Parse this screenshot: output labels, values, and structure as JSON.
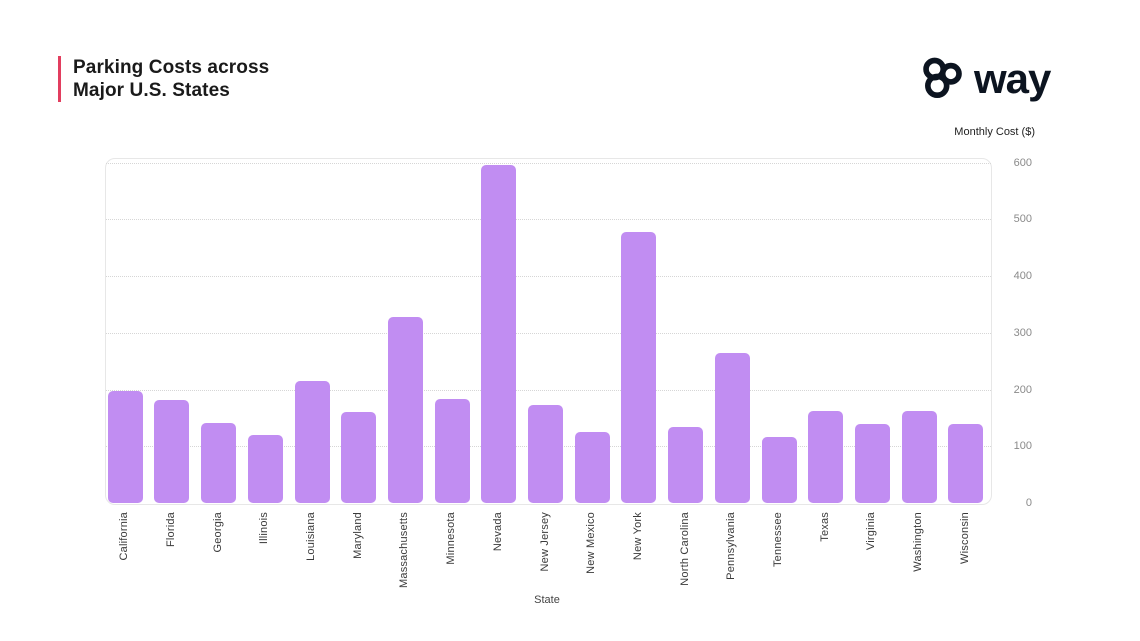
{
  "header": {
    "title_line1": "Parking Costs across",
    "title_line2": "Major U.S. States",
    "accent_color": "#e23e5f"
  },
  "logo": {
    "text": "way"
  },
  "chart_data": {
    "type": "bar",
    "title": "Parking Costs across Major U.S. States",
    "xlabel": "State",
    "ylabel": "Monthly Cost ($)",
    "ylim": [
      0,
      608
    ],
    "yticks": [
      0,
      100,
      200,
      300,
      400,
      500,
      600
    ],
    "grid": "horizontal-dotted",
    "legend_position": "none",
    "bar_color": "#c18df2",
    "categories": [
      "California",
      "Florida",
      "Georgia",
      "Illinois",
      "Louisiana",
      "Maryland",
      "Massachusetts",
      "Minnesota",
      "Nevada",
      "New Jersey",
      "New Mexico",
      "New York",
      "North Carolina",
      "Pennsylvania",
      "Tennessee",
      "Texas",
      "Virginia",
      "Washington",
      "Wisconsin"
    ],
    "values": [
      198,
      181,
      141,
      120,
      215,
      160,
      328,
      183,
      595,
      172,
      125,
      477,
      134,
      264,
      117,
      163,
      140,
      162,
      140
    ]
  }
}
